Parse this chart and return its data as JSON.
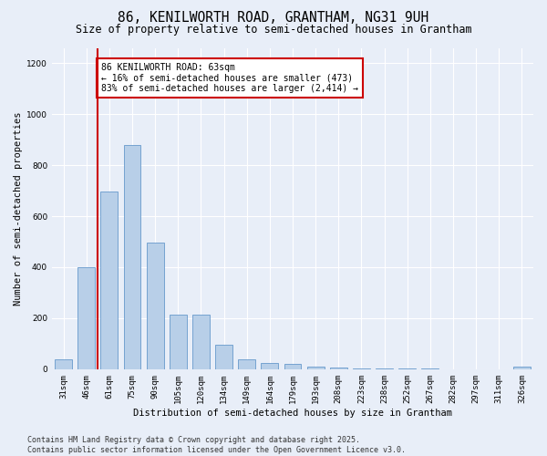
{
  "title": "86, KENILWORTH ROAD, GRANTHAM, NG31 9UH",
  "subtitle": "Size of property relative to semi-detached houses in Grantham",
  "xlabel": "Distribution of semi-detached houses by size in Grantham",
  "ylabel": "Number of semi-detached properties",
  "categories": [
    "31sqm",
    "46sqm",
    "61sqm",
    "75sqm",
    "90sqm",
    "105sqm",
    "120sqm",
    "134sqm",
    "149sqm",
    "164sqm",
    "179sqm",
    "193sqm",
    "208sqm",
    "223sqm",
    "238sqm",
    "252sqm",
    "267sqm",
    "282sqm",
    "297sqm",
    "311sqm",
    "326sqm"
  ],
  "values": [
    40,
    400,
    695,
    880,
    495,
    215,
    215,
    95,
    40,
    25,
    20,
    10,
    8,
    3,
    2,
    2,
    2,
    1,
    0,
    0,
    10
  ],
  "bar_color": "#b8cfe8",
  "bar_edge_color": "#6699cc",
  "highlight_bar_color": "#c8d8ef",
  "vline_color": "#cc0000",
  "vline_index": 2,
  "annotation_text": "86 KENILWORTH ROAD: 63sqm\n← 16% of semi-detached houses are smaller (473)\n83% of semi-detached houses are larger (2,414) →",
  "annotation_box_facecolor": "#ffffff",
  "annotation_box_edgecolor": "#cc0000",
  "ylim": [
    0,
    1260
  ],
  "yticks": [
    0,
    200,
    400,
    600,
    800,
    1000,
    1200
  ],
  "footer_line1": "Contains HM Land Registry data © Crown copyright and database right 2025.",
  "footer_line2": "Contains public sector information licensed under the Open Government Licence v3.0.",
  "bg_color": "#e8eef8",
  "grid_color": "#ffffff",
  "title_fontsize": 10.5,
  "subtitle_fontsize": 8.5,
  "axis_label_fontsize": 7.5,
  "tick_fontsize": 6.5,
  "annotation_fontsize": 7,
  "footer_fontsize": 6
}
